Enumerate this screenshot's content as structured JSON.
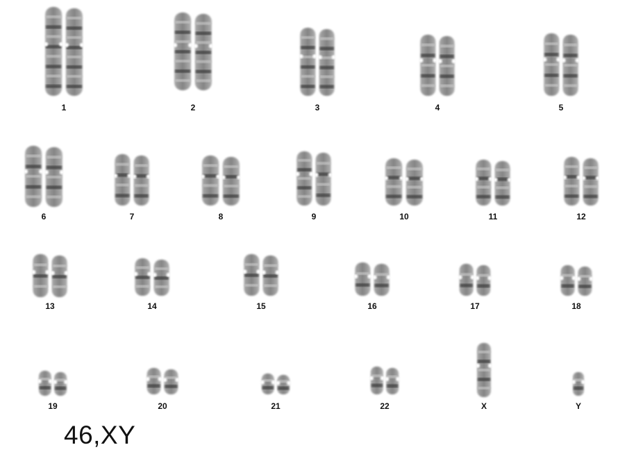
{
  "karyotype": {
    "result": "46,XY",
    "chromosomes": [
      {
        "label": "1",
        "count": 2
      },
      {
        "label": "2",
        "count": 2
      },
      {
        "label": "3",
        "count": 2
      },
      {
        "label": "4",
        "count": 2
      },
      {
        "label": "5",
        "count": 2
      },
      {
        "label": "6",
        "count": 2
      },
      {
        "label": "7",
        "count": 2
      },
      {
        "label": "8",
        "count": 2
      },
      {
        "label": "9",
        "count": 2
      },
      {
        "label": "10",
        "count": 2
      },
      {
        "label": "11",
        "count": 2
      },
      {
        "label": "12",
        "count": 2
      },
      {
        "label": "13",
        "count": 2
      },
      {
        "label": "14",
        "count": 2
      },
      {
        "label": "15",
        "count": 2
      },
      {
        "label": "16",
        "count": 2
      },
      {
        "label": "17",
        "count": 2
      },
      {
        "label": "18",
        "count": 2
      },
      {
        "label": "19",
        "count": 2
      },
      {
        "label": "20",
        "count": 2
      },
      {
        "label": "21",
        "count": 2
      },
      {
        "label": "22",
        "count": 2
      },
      {
        "label": "X",
        "count": 1
      },
      {
        "label": "Y",
        "count": 1
      }
    ]
  }
}
